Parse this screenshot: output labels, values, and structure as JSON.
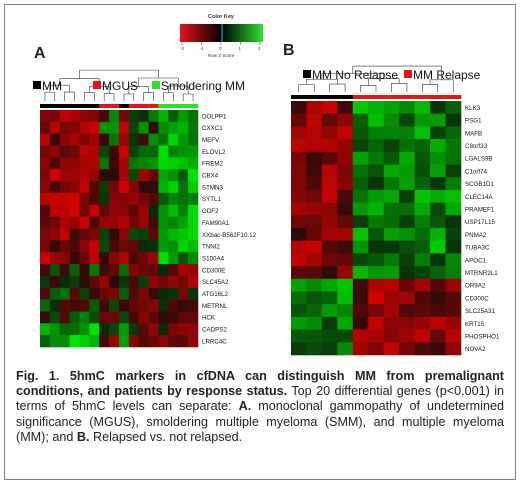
{
  "color_key": {
    "title": "Color Key",
    "ticks": [
      "-2",
      "-1",
      "0",
      "1",
      "2"
    ],
    "xlabel": "Row Z-Score",
    "low_color": "#e5141b",
    "mid_color": "#000000",
    "high_color": "#2fe12f"
  },
  "panel_a": {
    "label": "A",
    "legend": [
      {
        "label": "MM",
        "color": "#000000"
      },
      {
        "label": "MGUS",
        "color": "#e5141b"
      },
      {
        "label": "Smoldering MM",
        "color": "#2fe12f"
      }
    ],
    "genes": [
      "DOLPP1",
      "CXXC1",
      "MEFV",
      "ELOVL2",
      "FREM2",
      "CBX4",
      "STMN3",
      "SYTL1",
      "GDF2",
      "FAM90A1",
      "XXbac-B562F10.12",
      "TNNI2",
      "S100A4",
      "CD300E",
      "SLC45A2",
      "ATG16L2",
      "METRNL",
      "HCK",
      "CADPS2",
      "LRRC4C"
    ],
    "sample_groups": [
      "MM",
      "MM",
      "MM",
      "MM",
      "MM",
      "MM",
      "MGUS",
      "MGUS",
      "MM",
      "MGUS",
      "MGUS",
      "MGUS",
      "SMM",
      "SMM",
      "SMM",
      "SMM"
    ]
  },
  "panel_b": {
    "label": "B",
    "legend": [
      {
        "label": "MM No Relapse",
        "color": "#000000"
      },
      {
        "label": "MM Relapse",
        "color": "#e5141b"
      }
    ],
    "genes": [
      "KLK3",
      "PSG1",
      "MAFB",
      "C8orf33",
      "LGALS9B",
      "C1orf74",
      "SCGB1D1",
      "CLEC14A",
      "PRAMEF1",
      "USP17L15",
      "PNMA2",
      "TUBA3C",
      "APOC1",
      "MTRNR2L1",
      "OR9A2",
      "CD300C",
      "SLC25A31",
      "KRT15",
      "PHOSPHO1",
      "NOVA2"
    ],
    "sample_groups": [
      "NoRelapse",
      "NoRelapse",
      "NoRelapse",
      "NoRelapse",
      "Relapse",
      "Relapse",
      "Relapse",
      "Relapse",
      "Relapse",
      "Relapse",
      "Relapse"
    ]
  },
  "caption": {
    "bold": "Fig. 1. 5hmC markers in cfDNA can distinguish MM from premalignant conditions, and patients by response status.",
    "t1": " Top 20 differential genes (p<0.001) in terms of 5hmC levels can separate: ",
    "a": "A.",
    "t2": " monoclonal gammopathy of undetermined significance (MGUS), smoldering multiple myeloma (SMM), and multiple myeloma (MM); and ",
    "b": "B.",
    "t3": " Relapsed vs. not relapsed."
  }
}
